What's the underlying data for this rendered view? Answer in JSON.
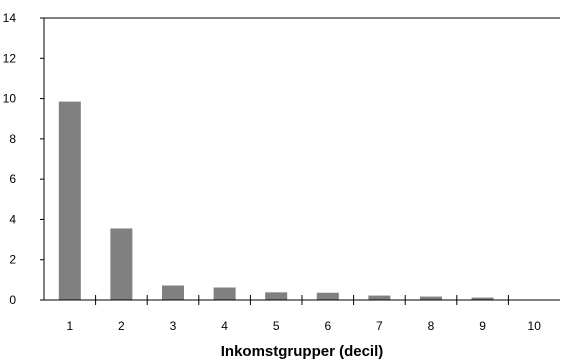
{
  "chart_data": {
    "type": "bar",
    "title": "",
    "xlabel": "Inkomstgrupper (decil)",
    "ylabel": "",
    "categories": [
      "1",
      "2",
      "3",
      "4",
      "5",
      "6",
      "7",
      "8",
      "9",
      "10"
    ],
    "values": [
      9.85,
      3.55,
      0.72,
      0.62,
      0.38,
      0.36,
      0.22,
      0.17,
      0.12,
      0
    ],
    "ylim": [
      0,
      14
    ],
    "yticks": [
      "0",
      "2",
      "4",
      "6",
      "8",
      "10",
      "12",
      "14"
    ],
    "grid": false,
    "legend": "none",
    "bar_color": "#808080",
    "axis_color": "#000000"
  }
}
